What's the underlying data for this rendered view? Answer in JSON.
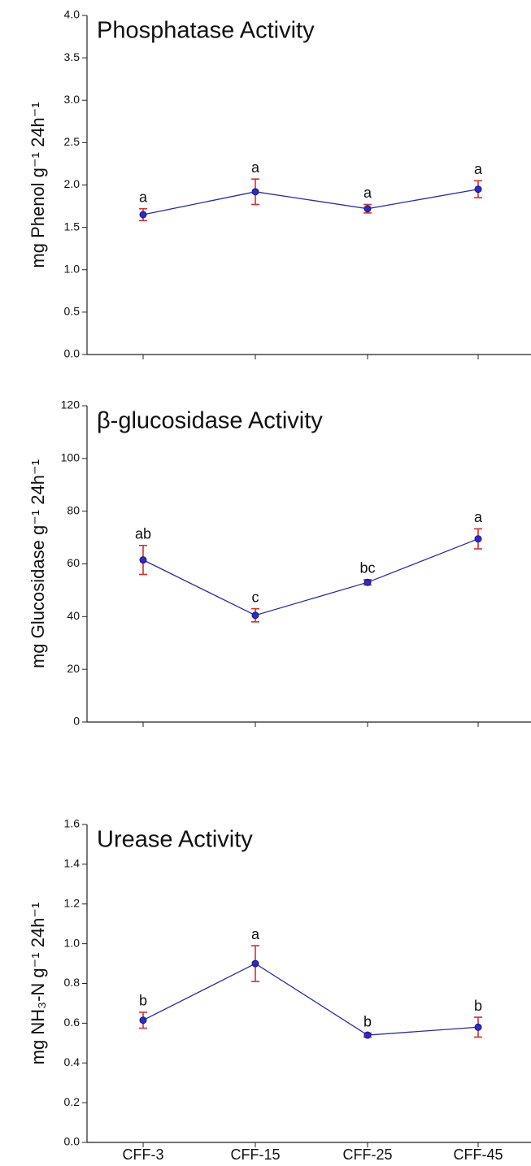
{
  "chart_data": [
    {
      "type": "line",
      "title": "Phosphatase Activity",
      "y_label": "mg Phenol g⁻¹ 24h⁻¹",
      "categories": [
        null,
        null,
        null,
        null
      ],
      "series": [
        {
          "color": "#2a2aa0",
          "marker_color": "#2a2ad0",
          "error_color": "#d03030",
          "values": [
            1.65,
            1.92,
            1.72,
            1.95
          ],
          "errors": [
            0.07,
            0.15,
            0.05,
            0.1
          ]
        }
      ],
      "annotations": [
        "a",
        "a",
        "a",
        "a"
      ],
      "ylim": [
        0,
        4
      ],
      "yticks": [
        {
          "value": 0,
          "label": "0.0"
        },
        0.5,
        {
          "value": 1,
          "label": "1.0"
        },
        1.5,
        {
          "value": 2,
          "label": "2.0"
        },
        2.5,
        {
          "value": 3,
          "label": "3.0"
        },
        3.5,
        {
          "value": 4,
          "label": "4.0"
        }
      ]
    },
    {
      "type": "line",
      "title": "β-glucosidase Activity",
      "y_label": "mg Glucosidase g⁻¹ 24h⁻¹",
      "categories": [
        null,
        null,
        null,
        null
      ],
      "series": [
        {
          "color": "#2a2aa0",
          "marker_color": "#2a2ad0",
          "error_color": "#d03030",
          "values": [
            61.5,
            40.5,
            53,
            69.5
          ],
          "errors": [
            5.5,
            2.5,
            1,
            3.8
          ]
        }
      ],
      "annotations": [
        "ab",
        "c",
        "bc",
        "a"
      ],
      "ylim": [
        0,
        120
      ],
      "yticks": [
        0,
        20,
        40,
        60,
        80,
        100,
        120
      ]
    },
    {
      "type": "line",
      "title": "Urease Activity",
      "y_label": "mg NH₃-N g⁻¹ 24h⁻¹",
      "categories": [
        "CFF-3",
        "CFF-15",
        "CFF-25",
        "CFF-45"
      ],
      "series": [
        {
          "color": "#2a2aa0",
          "marker_color": "#2a2ad0",
          "error_color": "#d03030",
          "values": [
            0.615,
            0.9,
            0.54,
            0.58
          ],
          "errors": [
            0.04,
            0.09,
            0.01,
            0.05
          ]
        }
      ],
      "annotations": [
        "b",
        "a",
        "b",
        "b"
      ],
      "ylim": [
        0,
        1.6
      ],
      "yticks": [
        {
          "value": 0,
          "label": "0.0"
        },
        0.2,
        0.4,
        0.6,
        0.8,
        {
          "value": 1,
          "label": "1.0"
        },
        1.2,
        1.4,
        1.6
      ]
    }
  ]
}
